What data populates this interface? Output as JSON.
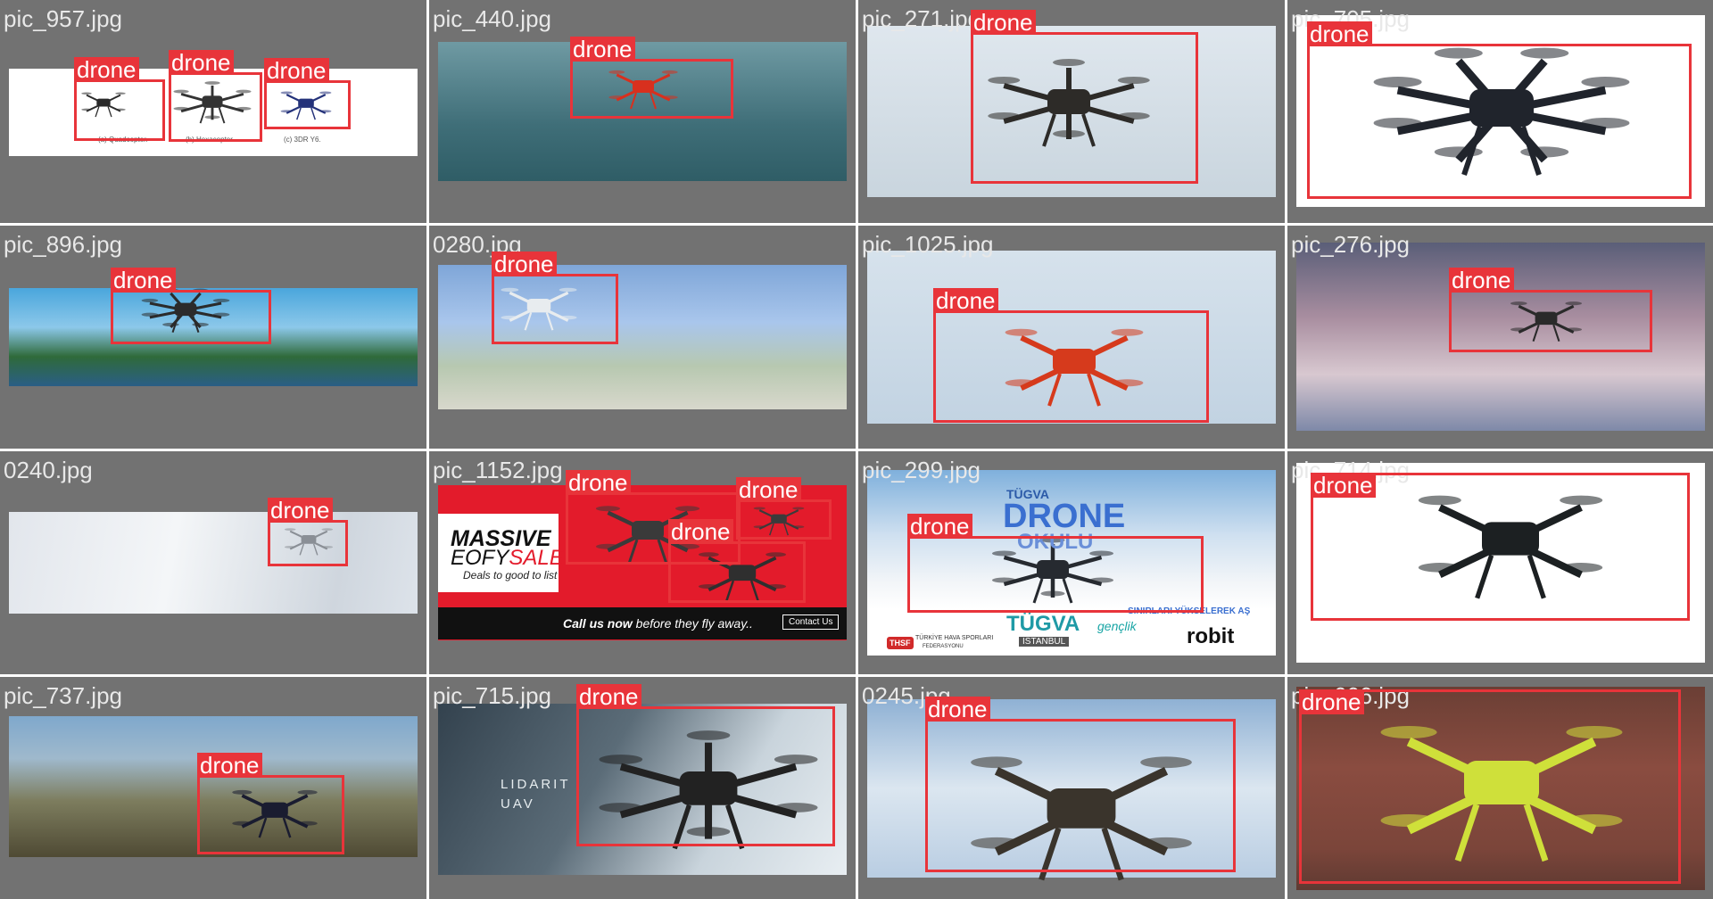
{
  "label_text": "drone",
  "colors": {
    "box": "#e8343a",
    "tile_bg": "#727272",
    "filename": "#e8e8e8"
  },
  "tiles": [
    {
      "filename": "pic_957.jpg",
      "captions": [
        "(a) Quadcopter.",
        "(b) Hexacopter.",
        "(c) 3DR Y6."
      ]
    },
    {
      "filename": "pic_440.jpg"
    },
    {
      "filename": "pic_271.jpg"
    },
    {
      "filename": "pic_705.jpg"
    },
    {
      "filename": "pic_896.jpg"
    },
    {
      "filename": "0280.jpg"
    },
    {
      "filename": "pic_1025.jpg"
    },
    {
      "filename": "pic_276.jpg"
    },
    {
      "filename": "0240.jpg"
    },
    {
      "filename": "pic_1152.jpg",
      "banner": {
        "line1": "MASSIVE",
        "line2a": "EOFY",
        "line2b": "SALE",
        "tagline": "Deals to good to list",
        "cta_bold": "Call us now",
        "cta_rest": " before they fly away..",
        "button": "Contact Us"
      }
    },
    {
      "filename": "pic_299.jpg",
      "banner": {
        "brand": "TÜGVA",
        "title1": "DRONE",
        "title2": "OKULU",
        "slogan": "SINIRLARI YÜKSELEREK AŞ",
        "fed1": "TÜRKİYE HAVA SPORLARI",
        "fed2": "FEDERASYONU",
        "fed_logo": "THSF",
        "tugva_city": "İSTANBUL",
        "genclik": "gençlik",
        "robit": "robit"
      }
    },
    {
      "filename": "pic_714.jpg"
    },
    {
      "filename": "pic_737.jpg"
    },
    {
      "filename": "pic_715.jpg",
      "overlay": {
        "line1": "LIDARIT",
        "line2": "UAV"
      }
    },
    {
      "filename": "0245.jpg"
    },
    {
      "filename": "pic_666.jpg"
    }
  ]
}
